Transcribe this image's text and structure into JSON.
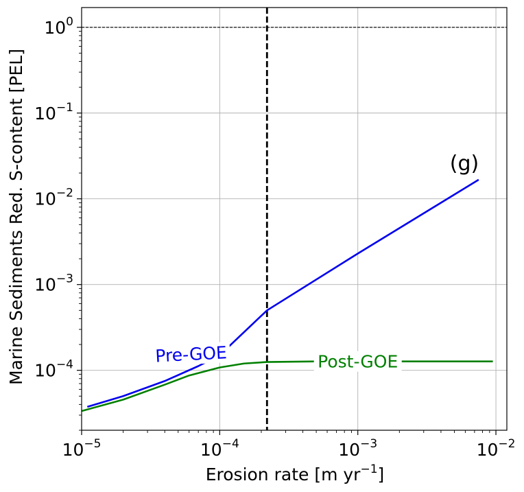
{
  "chart_data": {
    "type": "line",
    "xlabel_main": "Erosion rate [m yr",
    "xlabel_exp": "−1",
    "xlabel_close": "]",
    "ylabel": "Marine Sediments Red. S-content [PEL]",
    "panel_tag": "(g)",
    "x_scale": "log",
    "y_scale": "log",
    "xlim": [
      1e-05,
      0.012
    ],
    "ylim": [
      2e-05,
      1.7
    ],
    "grid": true,
    "x_ticks": [
      {
        "value": 1e-05,
        "base": "10",
        "exp": "−5"
      },
      {
        "value": 0.0001,
        "base": "10",
        "exp": "−4"
      },
      {
        "value": 0.001,
        "base": "10",
        "exp": "−3"
      },
      {
        "value": 0.01,
        "base": "10",
        "exp": "−2"
      }
    ],
    "y_ticks": [
      {
        "value": 0.0001,
        "base": "10",
        "exp": "−4"
      },
      {
        "value": 0.001,
        "base": "10",
        "exp": "−3"
      },
      {
        "value": 0.01,
        "base": "10",
        "exp": "−2"
      },
      {
        "value": 0.1,
        "base": "10",
        "exp": "−1"
      },
      {
        "value": 1,
        "base": "10",
        "exp": "0"
      }
    ],
    "reference_lines": [
      {
        "orientation": "horizontal",
        "value": 1,
        "style": "dashed",
        "color": "#000000"
      },
      {
        "orientation": "vertical",
        "value": 0.00022,
        "style": "dashed",
        "color": "#000000"
      }
    ],
    "series": [
      {
        "name": "Pre-GOE",
        "color": "#0000ee",
        "label_at": {
          "x": 6.2e-05,
          "y": 0.000155
        },
        "points": [
          {
            "x": 1.1e-05,
            "y": 3.75e-05
          },
          {
            "x": 2e-05,
            "y": 5e-05
          },
          {
            "x": 4e-05,
            "y": 7.5e-05
          },
          {
            "x": 7e-05,
            "y": 0.000112
          },
          {
            "x": 0.0001,
            "y": 0.00015
          },
          {
            "x": 0.00022,
            "y": 0.0005
          },
          {
            "x": 0.001,
            "y": 0.0023
          },
          {
            "x": 0.0075,
            "y": 0.0167
          }
        ]
      },
      {
        "name": "Post-GOE",
        "color": "#008000",
        "label_at": {
          "x": 0.001,
          "y": 0.000127
        },
        "points": [
          {
            "x": 1e-05,
            "y": 3.35e-05
          },
          {
            "x": 2e-05,
            "y": 4.55e-05
          },
          {
            "x": 4e-05,
            "y": 6.8e-05
          },
          {
            "x": 6e-05,
            "y": 8.7e-05
          },
          {
            "x": 0.0001,
            "y": 0.000108
          },
          {
            "x": 0.00015,
            "y": 0.00012
          },
          {
            "x": 0.00022,
            "y": 0.000125
          },
          {
            "x": 0.0005,
            "y": 0.000127
          },
          {
            "x": 0.0095,
            "y": 0.000127
          }
        ]
      }
    ]
  }
}
